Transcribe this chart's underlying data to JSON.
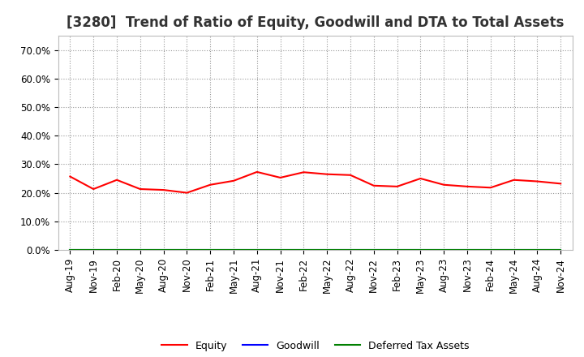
{
  "title": "[3280]  Trend of Ratio of Equity, Goodwill and DTA to Total Assets",
  "x_labels": [
    "Aug-19",
    "Nov-19",
    "Feb-20",
    "May-20",
    "Aug-20",
    "Nov-20",
    "Feb-21",
    "May-21",
    "Aug-21",
    "Nov-21",
    "Feb-22",
    "May-22",
    "Aug-22",
    "Nov-22",
    "Feb-23",
    "May-23",
    "Aug-23",
    "Nov-23",
    "Feb-24",
    "May-24",
    "Aug-24",
    "Nov-24"
  ],
  "equity": [
    0.257,
    0.213,
    0.245,
    0.213,
    0.21,
    0.2,
    0.228,
    0.242,
    0.273,
    0.253,
    0.272,
    0.265,
    0.262,
    0.225,
    0.222,
    0.25,
    0.228,
    0.222,
    0.218,
    0.245,
    0.24,
    0.232
  ],
  "goodwill": [
    0.0,
    0.0,
    0.0,
    0.0,
    0.0,
    0.0,
    0.0,
    0.0,
    0.0,
    0.0,
    0.0,
    0.0,
    0.0,
    0.0,
    0.0,
    0.0,
    0.0,
    0.0,
    0.0,
    0.0,
    0.0,
    0.0
  ],
  "dta": [
    0.0,
    0.0,
    0.0,
    0.0,
    0.0,
    0.0,
    0.0,
    0.0,
    0.0,
    0.0,
    0.0,
    0.0,
    0.0,
    0.0,
    0.0,
    0.0,
    0.0,
    0.0,
    0.0,
    0.0,
    0.0,
    0.0
  ],
  "equity_color": "#FF0000",
  "goodwill_color": "#0000FF",
  "dta_color": "#008000",
  "ylim": [
    0.0,
    0.75
  ],
  "yticks": [
    0.0,
    0.1,
    0.2,
    0.3,
    0.4,
    0.5,
    0.6,
    0.7
  ],
  "background_color": "#FFFFFF",
  "grid_color": "#999999",
  "title_fontsize": 12,
  "tick_fontsize": 8.5,
  "legend_labels": [
    "Equity",
    "Goodwill",
    "Deferred Tax Assets"
  ]
}
